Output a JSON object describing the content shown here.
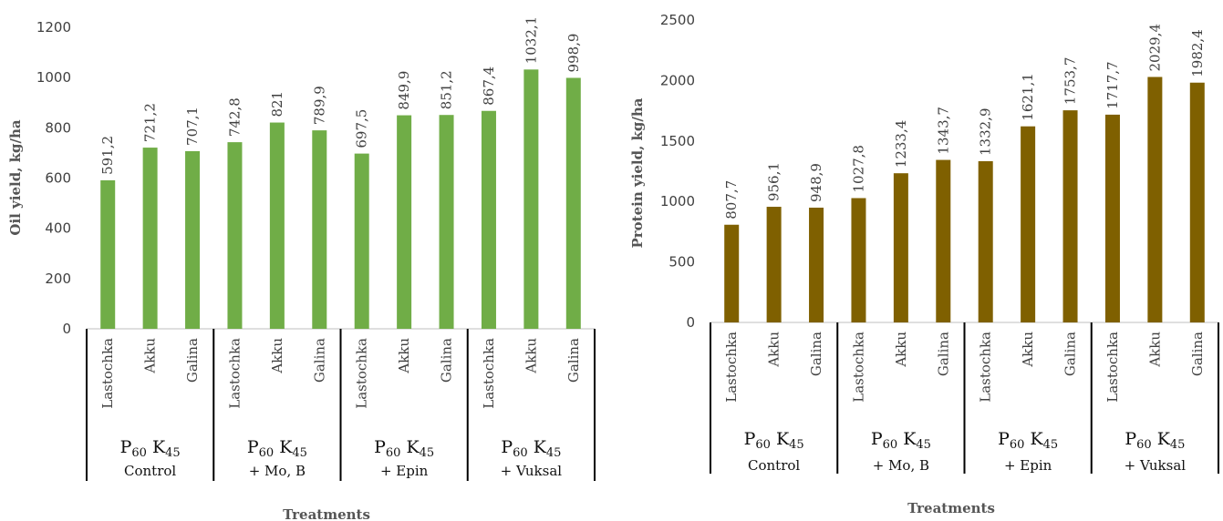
{
  "chart_data": [
    {
      "type": "bar",
      "ylabel": "Oil yield,  kg/ha",
      "xlabel": "Treatments",
      "ylim": [
        0,
        1200
      ],
      "yticks": [
        "0",
        "200",
        "400",
        "600",
        "800",
        "1000",
        "1200"
      ],
      "color": "#70ad47",
      "groups": [
        {
          "line1": "P60 K45",
          "line2": "Control",
          "categories": [
            "Lastochka",
            "Akku",
            "Galina"
          ],
          "values": [
            591.2,
            721.2,
            707.1
          ],
          "labels": [
            "591,2",
            "721,2",
            "707,1"
          ]
        },
        {
          "line1": "P60 K45",
          "line2": "+ Mo, B",
          "categories": [
            "Lastochka",
            "Akku",
            "Galina"
          ],
          "values": [
            742.8,
            821,
            789.9
          ],
          "labels": [
            "742,8",
            "821",
            "789,9"
          ]
        },
        {
          "line1": "P60 K45",
          "line2": "+ Epin",
          "categories": [
            "Lastochka",
            "Akku",
            "Galina"
          ],
          "values": [
            697.5,
            849.9,
            851.2
          ],
          "labels": [
            "697,5",
            "849,9",
            "851,2"
          ]
        },
        {
          "line1": "P60 K45",
          "line2": "+ Vuksal",
          "categories": [
            "Lastochka",
            "Akku",
            "Galina"
          ],
          "values": [
            867.4,
            1032.1,
            998.9
          ],
          "labels": [
            "867,4",
            "1032,1",
            "998,9"
          ]
        }
      ]
    },
    {
      "type": "bar",
      "ylabel": "Protein yield,  kg/ha",
      "xlabel": "Treatments",
      "ylim": [
        0,
        2500
      ],
      "yticks": [
        "0",
        "500",
        "1000",
        "1500",
        "2000",
        "2500"
      ],
      "color": "#7f6000",
      "groups": [
        {
          "line1": "P60 K45",
          "line2": "Control",
          "categories": [
            "Lastochka",
            "Akku",
            "Galina"
          ],
          "values": [
            807.7,
            956.1,
            948.9
          ],
          "labels": [
            "807,7",
            "956,1",
            "948,9"
          ]
        },
        {
          "line1": "P60 K45",
          "line2": "+ Mo, B",
          "categories": [
            "Lastochka",
            "Akku",
            "Galina"
          ],
          "values": [
            1027.8,
            1233.4,
            1343.7
          ],
          "labels": [
            "1027,8",
            "1233,4",
            "1343,7"
          ]
        },
        {
          "line1": "P60 K45",
          "line2": "+ Epin",
          "categories": [
            "Lastochka",
            "Akku",
            "Galina"
          ],
          "values": [
            1332.9,
            1621.1,
            1753.7
          ],
          "labels": [
            "1332,9",
            "1621,1",
            "1753,7"
          ]
        },
        {
          "line1": "P60 K45",
          "line2": "+ Vuksal",
          "categories": [
            "Lastochka",
            "Akku",
            "Galina"
          ],
          "values": [
            1717.7,
            2029.4,
            1982.4
          ],
          "labels": [
            "1717,7",
            "2029,4",
            "1982,4"
          ]
        }
      ]
    }
  ]
}
